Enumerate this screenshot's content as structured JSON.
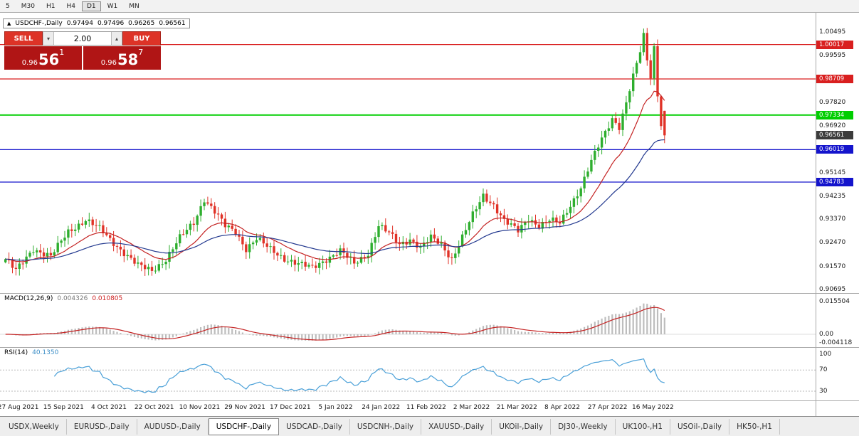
{
  "toolbar": {
    "timeframes": [
      "5",
      "M30",
      "H1",
      "H4",
      "D1",
      "W1",
      "MN"
    ],
    "active": "D1"
  },
  "icons": {
    "spinner_up": "▴",
    "spinner_down": "▾",
    "collapse": "▲"
  },
  "chart_header": {
    "symbol": "USDCHF-,Daily",
    "open": "0.97494",
    "high": "0.97496",
    "low": "0.96265",
    "close": "0.96561"
  },
  "trade_panel": {
    "sell_label": "SELL",
    "buy_label": "BUY",
    "volume": "2.00",
    "bid": {
      "base": "0.96",
      "main": "56",
      "pip": "1"
    },
    "ask": {
      "base": "0.96",
      "main": "58",
      "pip": "7"
    }
  },
  "macd_header": {
    "label": "MACD(12,26,9)",
    "value1": "0.004326",
    "value2": "0.010805"
  },
  "rsi_header": {
    "label": "RSI(14)",
    "value": "40.1350"
  },
  "tabs": {
    "items": [
      "USDX,Weekly",
      "EURUSD-,Daily",
      "AUDUSD-,Daily",
      "USDCHF-,Daily",
      "USDCAD-,Daily",
      "USDCNH-,Daily",
      "XAUUSD-,Daily",
      "UKOil-,Daily",
      "DJ30-,Weekly",
      "UK100-,H1",
      "USOil-,Daily",
      "HK50-,H1"
    ],
    "active": "USDCHF-,Daily"
  },
  "chart_data": {
    "type": "candlestick",
    "symbol": "USDCHF",
    "timeframe": "Daily",
    "price_axis_ticks": [
      "1.00495",
      "0.99595",
      "0.98695",
      "0.97820",
      "0.96920",
      "0.96020",
      "0.95145",
      "0.94235",
      "0.93370",
      "0.92470",
      "0.91570",
      "0.90695"
    ],
    "ylim": [
      0.90695,
      1.00495
    ],
    "levels": [
      {
        "price": 1.00017,
        "label": "1.00017",
        "color": "#d91f1f",
        "width": 1.2
      },
      {
        "price": 0.98709,
        "label": "0.98709",
        "color": "#d91f1f",
        "width": 1.2
      },
      {
        "price": 0.97334,
        "label": "0.97334",
        "color": "#00ce00",
        "width": 2
      },
      {
        "price": 0.96019,
        "label": "0.96019",
        "color": "#1414cc",
        "width": 1.2
      },
      {
        "price": 0.94783,
        "label": "0.94783",
        "color": "#1414cc",
        "width": 1.2
      }
    ],
    "current_price": {
      "value": 0.96561,
      "label": "0.96561",
      "bg": "#3c3c3c"
    },
    "last_ohlc": {
      "open": 0.97494,
      "high": 0.97496,
      "low": 0.96265,
      "close": 0.96561
    },
    "candles": {
      "count": 190,
      "keyframes": [
        [
          0,
          0.9185
        ],
        [
          3,
          0.914
        ],
        [
          8,
          0.9225
        ],
        [
          13,
          0.9195
        ],
        [
          18,
          0.929
        ],
        [
          23,
          0.9335
        ],
        [
          27,
          0.93
        ],
        [
          30,
          0.926
        ],
        [
          34,
          0.921
        ],
        [
          38,
          0.916
        ],
        [
          42,
          0.9142
        ],
        [
          46,
          0.9185
        ],
        [
          50,
          0.9265
        ],
        [
          54,
          0.9325
        ],
        [
          57,
          0.9415
        ],
        [
          60,
          0.9365
        ],
        [
          63,
          0.931
        ],
        [
          66,
          0.929
        ],
        [
          69,
          0.9225
        ],
        [
          72,
          0.9262
        ],
        [
          76,
          0.9222
        ],
        [
          80,
          0.9188
        ],
        [
          84,
          0.9166
        ],
        [
          88,
          0.9152
        ],
        [
          92,
          0.9186
        ],
        [
          96,
          0.9215
        ],
        [
          100,
          0.9168
        ],
        [
          104,
          0.9208
        ],
        [
          107,
          0.9312
        ],
        [
          110,
          0.9282
        ],
        [
          113,
          0.9242
        ],
        [
          116,
          0.9262
        ],
        [
          119,
          0.9228
        ],
        [
          122,
          0.9266
        ],
        [
          125,
          0.9242
        ],
        [
          128,
          0.9186
        ],
        [
          131,
          0.9268
        ],
        [
          134,
          0.9352
        ],
        [
          137,
          0.9428
        ],
        [
          140,
          0.9392
        ],
        [
          143,
          0.933
        ],
        [
          147,
          0.9292
        ],
        [
          150,
          0.9342
        ],
        [
          153,
          0.9312
        ],
        [
          156,
          0.9332
        ],
        [
          159,
          0.9322
        ],
        [
          162,
          0.9392
        ],
        [
          165,
          0.9458
        ],
        [
          168,
          0.9556
        ],
        [
          171,
          0.9642
        ],
        [
          174,
          0.9722
        ],
        [
          176,
          0.969
        ],
        [
          178,
          0.978
        ],
        [
          180,
          0.9878
        ],
        [
          182,
          0.9975
        ],
        [
          183,
          1.0035
        ],
        [
          184,
          0.9945
        ],
        [
          185,
          0.9882
        ],
        [
          186,
          0.9992
        ],
        [
          187,
          0.9815
        ],
        [
          188,
          0.97
        ],
        [
          189,
          0.96561
        ]
      ]
    },
    "date_axis": [
      "27 Aug 2021",
      "15 Sep 2021",
      "4 Oct 2021",
      "22 Oct 2021",
      "10 Nov 2021",
      "29 Nov 2021",
      "17 Dec 2021",
      "5 Jan 2022",
      "24 Jan 2022",
      "11 Feb 2022",
      "2 Mar 2022",
      "21 Mar 2022",
      "8 Apr 2022",
      "27 Apr 2022",
      "16 May 2022"
    ],
    "macd": {
      "params": [
        12,
        26,
        9
      ],
      "axis": [
        {
          "label": "0.015504",
          "value": 0.015504
        },
        {
          "label": "0.00",
          "value": 0
        },
        {
          "label": "-0.004118",
          "value": -0.004118
        }
      ],
      "hist_color": "#bdbdbd",
      "signal_color": "#c42222"
    },
    "rsi": {
      "period": 14,
      "axis": [
        {
          "label": "100",
          "value": 100
        },
        {
          "label": "70",
          "value": 70
        },
        {
          "label": "30",
          "value": 30
        }
      ],
      "dashed_levels": [
        70,
        30
      ],
      "line_color": "#4aa0d8"
    },
    "colors": {
      "up": "#2eae2e",
      "down": "#e03227",
      "ma_fast": "#c42222",
      "ma_slow": "#23398f"
    }
  }
}
